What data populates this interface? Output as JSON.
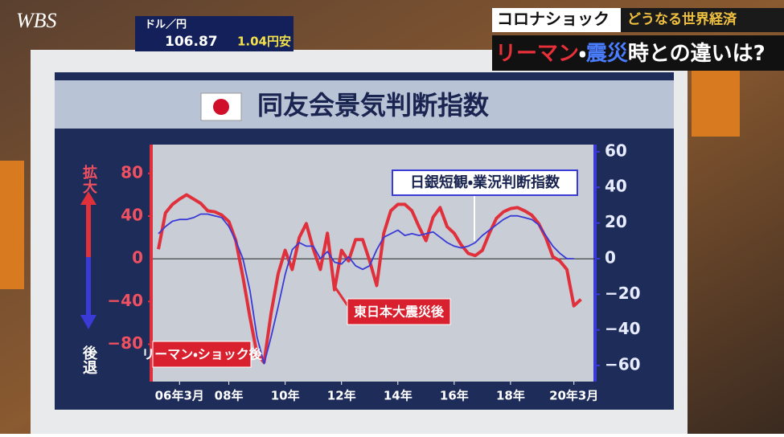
{
  "overlay": {
    "logo": "WBS",
    "fx_label": "ドル／円",
    "fx_value": "106.87",
    "fx_change": "1.04円安",
    "headline_tag": "コロナショック",
    "headline_sub": "どうなる世界経済",
    "headline_parts": [
      {
        "text": "リーマン",
        "color": "#e8303a"
      },
      {
        "text": "・",
        "color": "#ffffff"
      },
      {
        "text": "震災",
        "color": "#4a7dff"
      },
      {
        "text": "時との違いは?",
        "color": "#ffffff"
      }
    ]
  },
  "chart_data": {
    "type": "line",
    "title": "同友会景気判断指数",
    "ylabel_top": "拡大",
    "ylabel_bottom": "後退",
    "x": [
      2005.5,
      2005.75,
      2006,
      2006.25,
      2006.5,
      2006.75,
      2007,
      2007.25,
      2007.5,
      2007.75,
      2008,
      2008.25,
      2008.5,
      2008.75,
      2009,
      2009.25,
      2009.5,
      2009.75,
      2010,
      2010.25,
      2010.5,
      2010.75,
      2011,
      2011.25,
      2011.5,
      2011.75,
      2012,
      2012.25,
      2012.5,
      2012.75,
      2013,
      2013.25,
      2013.5,
      2013.75,
      2014,
      2014.25,
      2014.5,
      2014.75,
      2015,
      2015.25,
      2015.5,
      2015.75,
      2016,
      2016.25,
      2016.5,
      2016.75,
      2017,
      2017.25,
      2017.5,
      2017.75,
      2018,
      2018.25,
      2018.5,
      2018.75,
      2019,
      2019.25,
      2019.5,
      2019.75,
      2020,
      2020.25,
      2020.5
    ],
    "xlim": [
      2005.3,
      2021.0
    ],
    "xticks": [
      {
        "value": 2006.25,
        "label": "06年3月"
      },
      {
        "value": 2008,
        "label": "08年"
      },
      {
        "value": 2010,
        "label": "10年"
      },
      {
        "value": 2012,
        "label": "12年"
      },
      {
        "value": 2014,
        "label": "14年"
      },
      {
        "value": 2016,
        "label": "16年"
      },
      {
        "value": 2018,
        "label": "18年"
      },
      {
        "value": 2020.25,
        "label": "20年3月"
      }
    ],
    "ylim": [
      -115,
      107
    ],
    "yticks": [
      {
        "value": -80,
        "label": "−80"
      },
      {
        "value": -40,
        "label": "−40"
      },
      0,
      40,
      80
    ],
    "y2lim": [
      -69,
      64
    ],
    "y2ticks": [
      {
        "value": -60,
        "label": "−60"
      },
      {
        "value": -40,
        "label": "−40"
      },
      {
        "value": -20,
        "label": "−20"
      },
      0,
      20,
      40,
      60
    ],
    "series": [
      {
        "name": "同友会景気判断指数",
        "color": "#e0303c",
        "values": [
          9,
          43,
          51,
          56,
          60,
          56,
          52,
          45,
          44,
          41,
          35,
          17,
          -17,
          -55,
          -89,
          -97,
          -51,
          -14,
          8,
          -10,
          20,
          33,
          9,
          -10,
          24,
          -29,
          8,
          -2,
          18,
          18,
          -2,
          -25,
          24,
          45,
          51,
          51,
          45,
          30,
          17,
          39,
          48,
          30,
          24,
          13,
          5,
          3,
          8,
          24,
          38,
          44,
          47,
          48,
          45,
          41,
          33,
          20,
          2,
          -2,
          -10,
          -44,
          -38
        ]
      },
      {
        "name": "日銀短観・業況判断指数",
        "color": "#3a3ad6",
        "axis": "y2",
        "values": [
          14,
          18,
          21,
          22,
          22,
          23,
          25,
          25,
          24,
          23,
          18,
          10,
          0,
          -18,
          -44,
          -59,
          -44,
          -27,
          -9,
          5,
          9,
          7,
          7,
          0,
          4,
          -2,
          -3,
          1,
          -4,
          -6,
          -4,
          5,
          12,
          14,
          16,
          13,
          14,
          13,
          14,
          15,
          12,
          9,
          7,
          6,
          7,
          9,
          13,
          16,
          19,
          22,
          24,
          24,
          23,
          22,
          19,
          13,
          7,
          3,
          0,
          0,
          null
        ]
      }
    ],
    "annotations": [
      "リーマン・ショック後",
      "東日本大震災後"
    ]
  }
}
